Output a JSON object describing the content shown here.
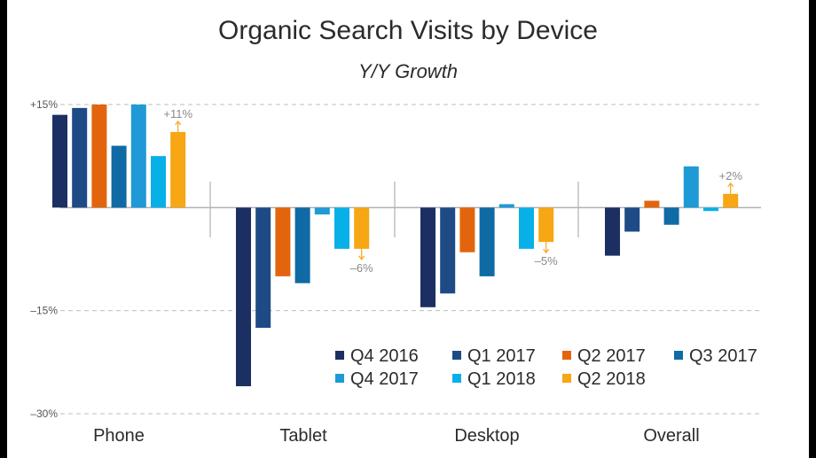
{
  "title": "Organic Search Visits by Device",
  "subtitle": "Y/Y Growth",
  "chart_data": {
    "type": "bar",
    "title": "Organic Search Visits by Device",
    "subtitle": "Y/Y Growth",
    "categories": [
      "Phone",
      "Tablet",
      "Desktop",
      "Overall"
    ],
    "y_ticks": [
      "+15%",
      "–15%",
      "–30%"
    ],
    "ylim": [
      -30,
      15
    ],
    "grid": true,
    "legend_position": "bottom-right",
    "series": [
      {
        "name": "Q4 2016",
        "color": "#1b2f62",
        "values": [
          13.5,
          -26,
          -14.5,
          -7
        ]
      },
      {
        "name": "Q1 2017",
        "color": "#1e4b86",
        "values": [
          14.5,
          -17.5,
          -12.5,
          -3.5
        ]
      },
      {
        "name": "Q2 2017",
        "color": "#e2650e",
        "values": [
          15,
          -10,
          -6.5,
          1
        ]
      },
      {
        "name": "Q3 2017",
        "color": "#0f6aa5",
        "values": [
          9,
          -11,
          -10,
          -2.5
        ]
      },
      {
        "name": "Q4 2017",
        "color": "#1f9ad6",
        "values": [
          15,
          -1,
          0.5,
          6
        ]
      },
      {
        "name": "Q1 2018",
        "color": "#08b0e8",
        "values": [
          7.5,
          -6,
          -6,
          -0.5
        ]
      },
      {
        "name": "Q2 2018",
        "color": "#f7a614",
        "values": [
          11,
          -6,
          -5,
          2
        ]
      }
    ],
    "annotations": [
      "+11%",
      "–6%",
      "–5%",
      "+2%"
    ]
  }
}
